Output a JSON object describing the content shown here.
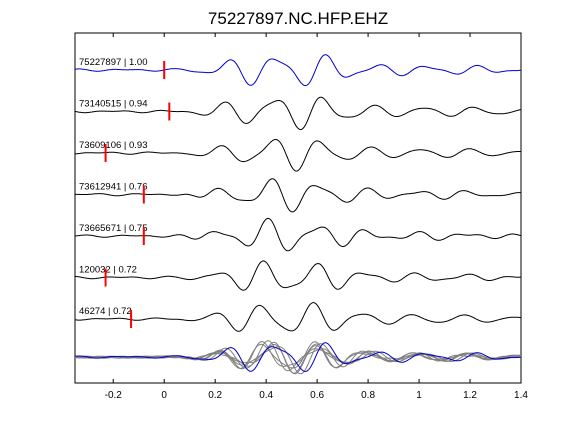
{
  "chart_data": {
    "type": "line",
    "title": "75227897.NC.HFP.EHZ",
    "xlabel": "",
    "ylabel": "",
    "xlim": [
      -0.35,
      1.4
    ],
    "xticks": [
      -0.2,
      0,
      0.2,
      0.4,
      0.6,
      0.8,
      1,
      1.2,
      1.4
    ],
    "xtick_labels": [
      "-0.2",
      "0",
      "0.2",
      "0.4",
      "0.6",
      "0.8",
      "1",
      "1.2",
      "1.4"
    ],
    "grid": false,
    "colors": {
      "reference": "#0000cc",
      "trace": "#000000",
      "overlay": "#808080",
      "pick": "#ff0000"
    },
    "series": [
      {
        "name": "75227897",
        "label": "75227897 | 1.00",
        "pick_time": 0.0,
        "color": "#0000cc"
      },
      {
        "name": "73140515",
        "label": "73140515 | 0.94",
        "pick_time": 0.02,
        "color": "#000000"
      },
      {
        "name": "73609106",
        "label": "73609106 | 0.93",
        "pick_time": -0.23,
        "color": "#000000"
      },
      {
        "name": "73612941",
        "label": "73612941 | 0.76",
        "pick_time": -0.08,
        "color": "#000000"
      },
      {
        "name": "73665671",
        "label": "73665671 | 0.75",
        "pick_time": -0.08,
        "color": "#000000"
      },
      {
        "name": "120032",
        "label": "120032 | 0.72",
        "pick_time": -0.23,
        "color": "#000000"
      },
      {
        "name": "46274",
        "label": "46274 | 0.72",
        "pick_time": -0.13,
        "color": "#000000"
      }
    ]
  }
}
